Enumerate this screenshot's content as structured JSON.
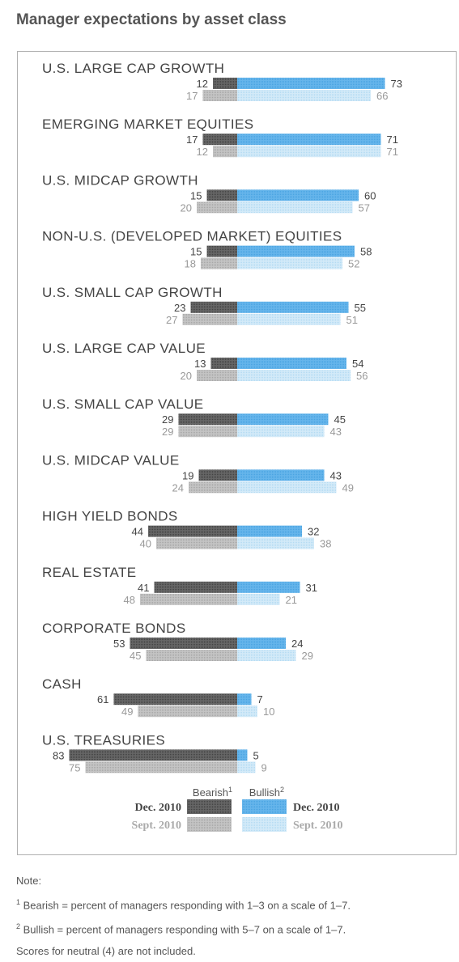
{
  "title": "Manager expectations by asset class",
  "chart_data": {
    "type": "bar",
    "orientation": "horizontal-diverging",
    "categories": [
      "U.S. LARGE CAP GROWTH",
      "EMERGING MARKET EQUITIES",
      "U.S. MIDCAP GROWTH",
      "NON-U.S. (DEVELOPED MARKET) EQUITIES",
      "U.S. SMALL CAP GROWTH",
      "U.S. LARGE CAP VALUE",
      "U.S. SMALL CAP VALUE",
      "U.S. MIDCAP VALUE",
      "HIGH YIELD BONDS",
      "REAL ESTATE",
      "CORPORATE BONDS",
      "CASH",
      "U.S. TREASURIES"
    ],
    "series": [
      {
        "name": "Bearish Dec. 2010",
        "values": [
          12,
          17,
          15,
          15,
          23,
          13,
          29,
          19,
          44,
          41,
          53,
          61,
          83
        ]
      },
      {
        "name": "Bearish Sept. 2010",
        "values": [
          17,
          12,
          20,
          18,
          27,
          20,
          29,
          24,
          40,
          48,
          45,
          49,
          75
        ]
      },
      {
        "name": "Bullish Dec. 2010",
        "values": [
          73,
          71,
          60,
          58,
          55,
          54,
          45,
          43,
          32,
          31,
          24,
          7,
          5
        ]
      },
      {
        "name": "Bullish Sept. 2010",
        "values": [
          66,
          71,
          57,
          52,
          51,
          56,
          43,
          49,
          38,
          21,
          29,
          10,
          9
        ]
      }
    ],
    "colors": {
      "bearish_dec": "#555555",
      "bearish_sept": "#bbbbbb",
      "bullish_dec": "#5aaee8",
      "bullish_sept": "#c6e3f5"
    },
    "legend": {
      "bearish": "Bearish",
      "bearish_sup": "1",
      "bullish": "Bullish",
      "bullish_sup": "2",
      "dec": "Dec. 2010",
      "sept": "Sept. 2010",
      "placement": "bottom"
    }
  },
  "notes": {
    "heading": "Note:",
    "n1_mark": "1",
    "n1": "Bearish = percent of managers responding with 1–3 on a scale of 1–7.",
    "n2_mark": "2",
    "n2": "Bullish = percent of managers responding with 5–7 on a scale of 1–7.",
    "n3": "Scores for neutral (4) are not included."
  }
}
